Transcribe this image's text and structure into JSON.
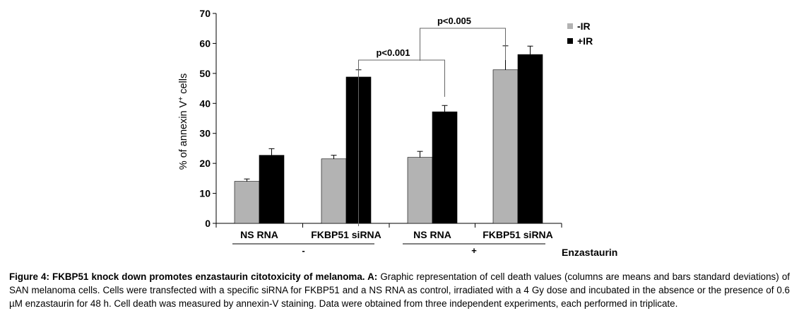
{
  "chart_data": {
    "type": "bar",
    "ylabel_prefix": "% of annexin V",
    "ylabel_sup": "+",
    "ylabel_suffix": " cells",
    "ylim": [
      0,
      70
    ],
    "yticks": [
      0,
      10,
      20,
      30,
      40,
      50,
      60,
      70
    ],
    "categories": [
      "NS RNA",
      "FKBP51 siRNA",
      "NS RNA",
      "FKBP51 siRNA"
    ],
    "groups": [
      {
        "label": "-",
        "categories": [
          0,
          1
        ]
      },
      {
        "label": "+",
        "categories": [
          2,
          3
        ]
      }
    ],
    "group_axis_label": "Enzastaurin",
    "series": [
      {
        "name": "-IR",
        "color": "#b3b3b3",
        "values": [
          14.0,
          21.5,
          22.0,
          51.2
        ],
        "errors": [
          0.8,
          1.2,
          2.0,
          8.0
        ]
      },
      {
        "name": "+IR",
        "color": "#000000",
        "values": [
          22.7,
          48.8,
          37.2,
          56.3
        ],
        "errors": [
          2.2,
          2.4,
          2.1,
          2.8
        ]
      }
    ],
    "annotations": [
      {
        "text": "p<0.001",
        "from": {
          "category": 1,
          "series": 1
        },
        "to": {
          "category": 2,
          "series": 1
        }
      },
      {
        "text": "p<0.005",
        "from": {
          "category": 2,
          "series": 0
        },
        "to": {
          "category": 3,
          "series": 0
        }
      }
    ],
    "legend_position": "top-right",
    "grid": false
  },
  "caption": {
    "title": "Figure 4: FKBP51 knock down promotes enzastaurin citotoxicity of melanoma. A:",
    "text": " Graphic representation of cell death values (columns are means and bars standard deviations) of SAN melanoma cells. Cells were transfected with a specific siRNA for FKBP51 and a NS RNA as control, irradiated with a 4 Gy dose and incubated in the absence or the presence of 0.6 µM enzastaurin for 48 h. Cell death was measured by annexin-V staining. Data were obtained from three independent experiments, each performed in triplicate."
  }
}
